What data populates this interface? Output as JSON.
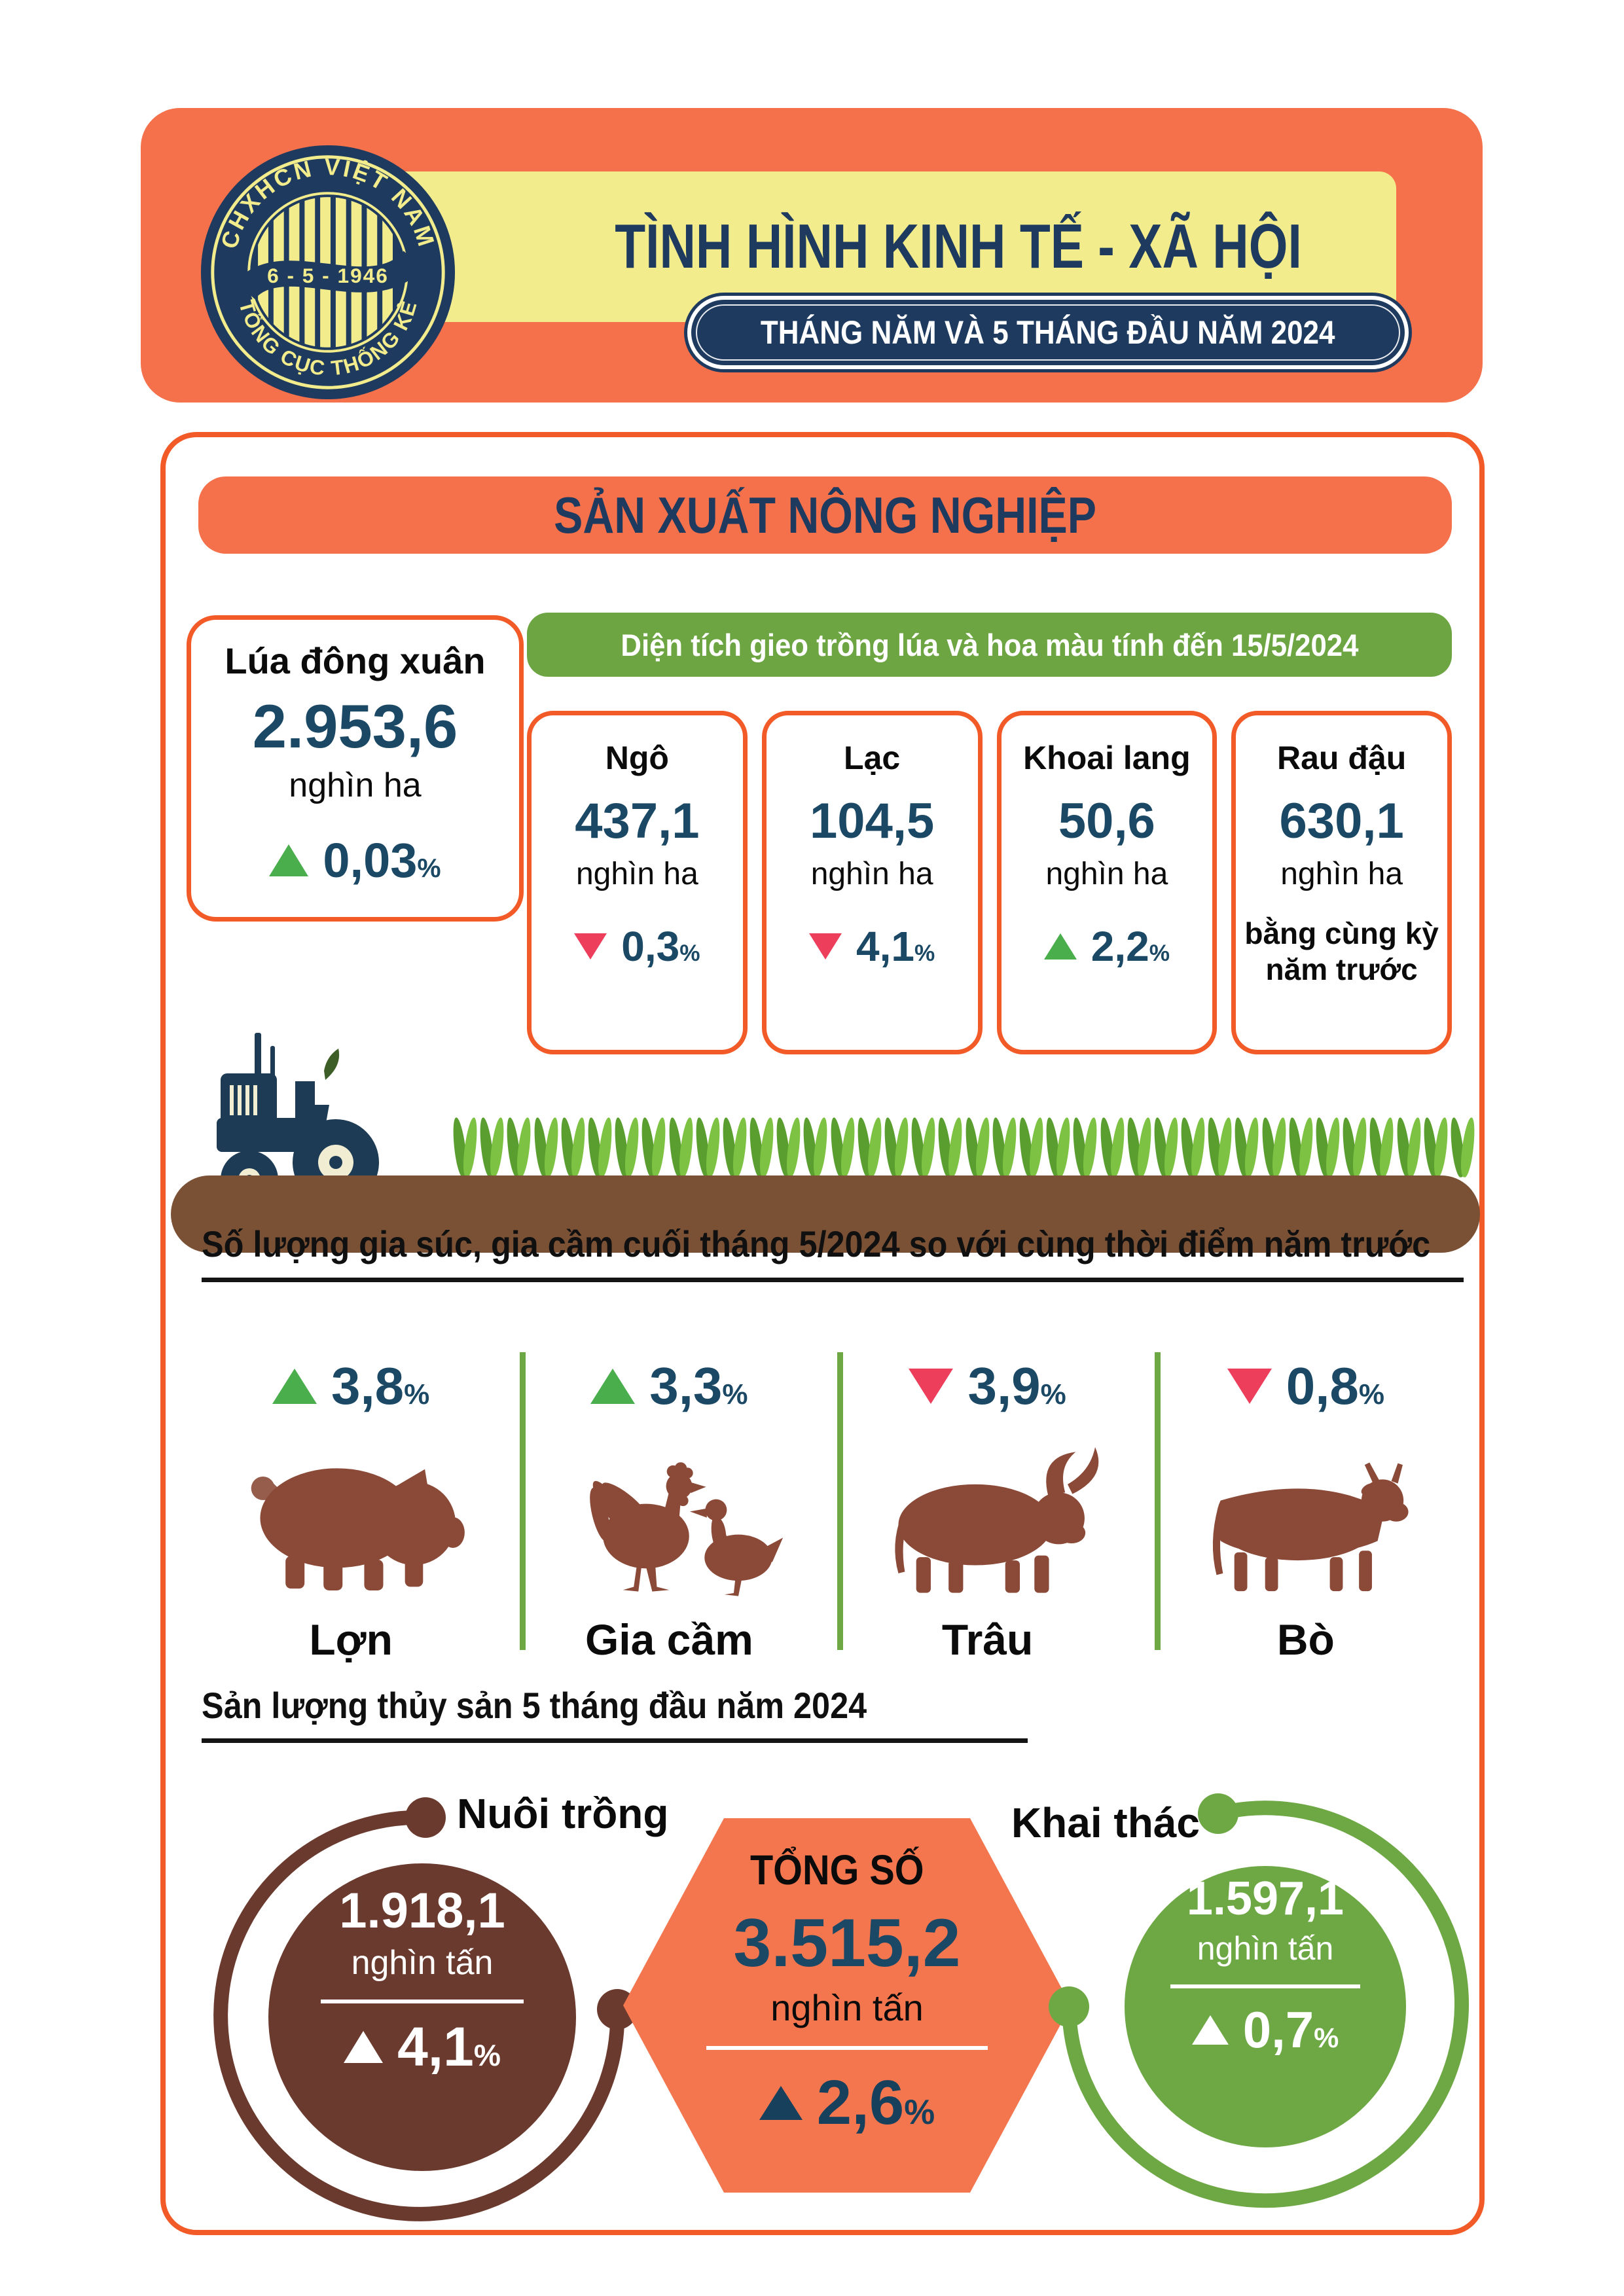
{
  "header": {
    "logo": {
      "ring_text_top": "CHXHCN VIỆT NAM",
      "ring_text_bottom": "TỔNG CỤC THỐNG KÊ",
      "date": "6 - 5 - 1946"
    },
    "title": "TÌNH HÌNH KINH TẾ - XÃ HỘI",
    "subtitle": "THÁNG NĂM VÀ 5 THÁNG ĐẦU NĂM 2024"
  },
  "section": {
    "banner": "SẢN XUẤT NÔNG NGHIỆP"
  },
  "rice_card": {
    "label": "Lúa đông xuân",
    "value": "2.953,6",
    "unit": "nghìn ha",
    "change": "0,03",
    "direction": "up"
  },
  "crops_banner": "Diện tích gieo trồng lúa và hoa màu tính đến 15/5/2024",
  "crops": [
    {
      "label": "Ngô",
      "value": "437,1",
      "unit": "nghìn ha",
      "change": "0,3",
      "direction": "down"
    },
    {
      "label": "Lạc",
      "value": "104,5",
      "unit": "nghìn ha",
      "change": "4,1",
      "direction": "down"
    },
    {
      "label": "Khoai lang",
      "value": "50,6",
      "unit": "nghìn ha",
      "change": "2,2",
      "direction": "up"
    },
    {
      "label": "Rau đậu",
      "value": "630,1",
      "unit": "nghìn ha",
      "note_line1": "bằng cùng kỳ",
      "note_line2": "năm trước"
    }
  ],
  "livestock": {
    "heading": "Số lượng gia súc, gia cầm cuối tháng 5/2024 so với cùng thời điểm năm trước",
    "items": [
      {
        "label": "Lợn",
        "change": "3,8",
        "direction": "up"
      },
      {
        "label": "Gia cầm",
        "change": "3,3",
        "direction": "up"
      },
      {
        "label": "Trâu",
        "change": "3,9",
        "direction": "down"
      },
      {
        "label": "Bò",
        "change": "0,8",
        "direction": "down"
      }
    ]
  },
  "fishery": {
    "heading": "Sản lượng thủy sản 5 tháng đầu năm 2024",
    "aquaculture": {
      "label": "Nuôi trồng",
      "value": "1.918,1",
      "unit": "nghìn tấn",
      "change": "4,1",
      "direction": "up"
    },
    "total": {
      "label": "TỔNG SỐ",
      "value": "3.515,2",
      "unit": "nghìn tấn",
      "change": "2,6",
      "direction": "up"
    },
    "capture": {
      "label": "Khai thác",
      "value": "1.597,1",
      "unit": "nghìn tấn",
      "change": "0,7",
      "direction": "up"
    }
  },
  "percent_sign": "%",
  "colors": {
    "orange": "#F4714B",
    "orange_border": "#F25A28",
    "yellow": "#F2EC8C",
    "navy": "#1E3A5F",
    "teal": "#1B4965",
    "green": "#6DA542",
    "up_green": "#4AAE4D",
    "down_red": "#ED3E5C",
    "animal_brown": "#8B4A38",
    "soil": "#7B5135",
    "sprout_light": "#7DC242",
    "sprout_dark": "#5A9E2F",
    "aqua_brown": "#6B3A2E",
    "capture_green": "#6EA845",
    "hex_orange": "#F4764E",
    "tri_navy": "#17405C",
    "tractor_navy": "#1D3B55",
    "wheel_cream": "#F1EDD2"
  }
}
